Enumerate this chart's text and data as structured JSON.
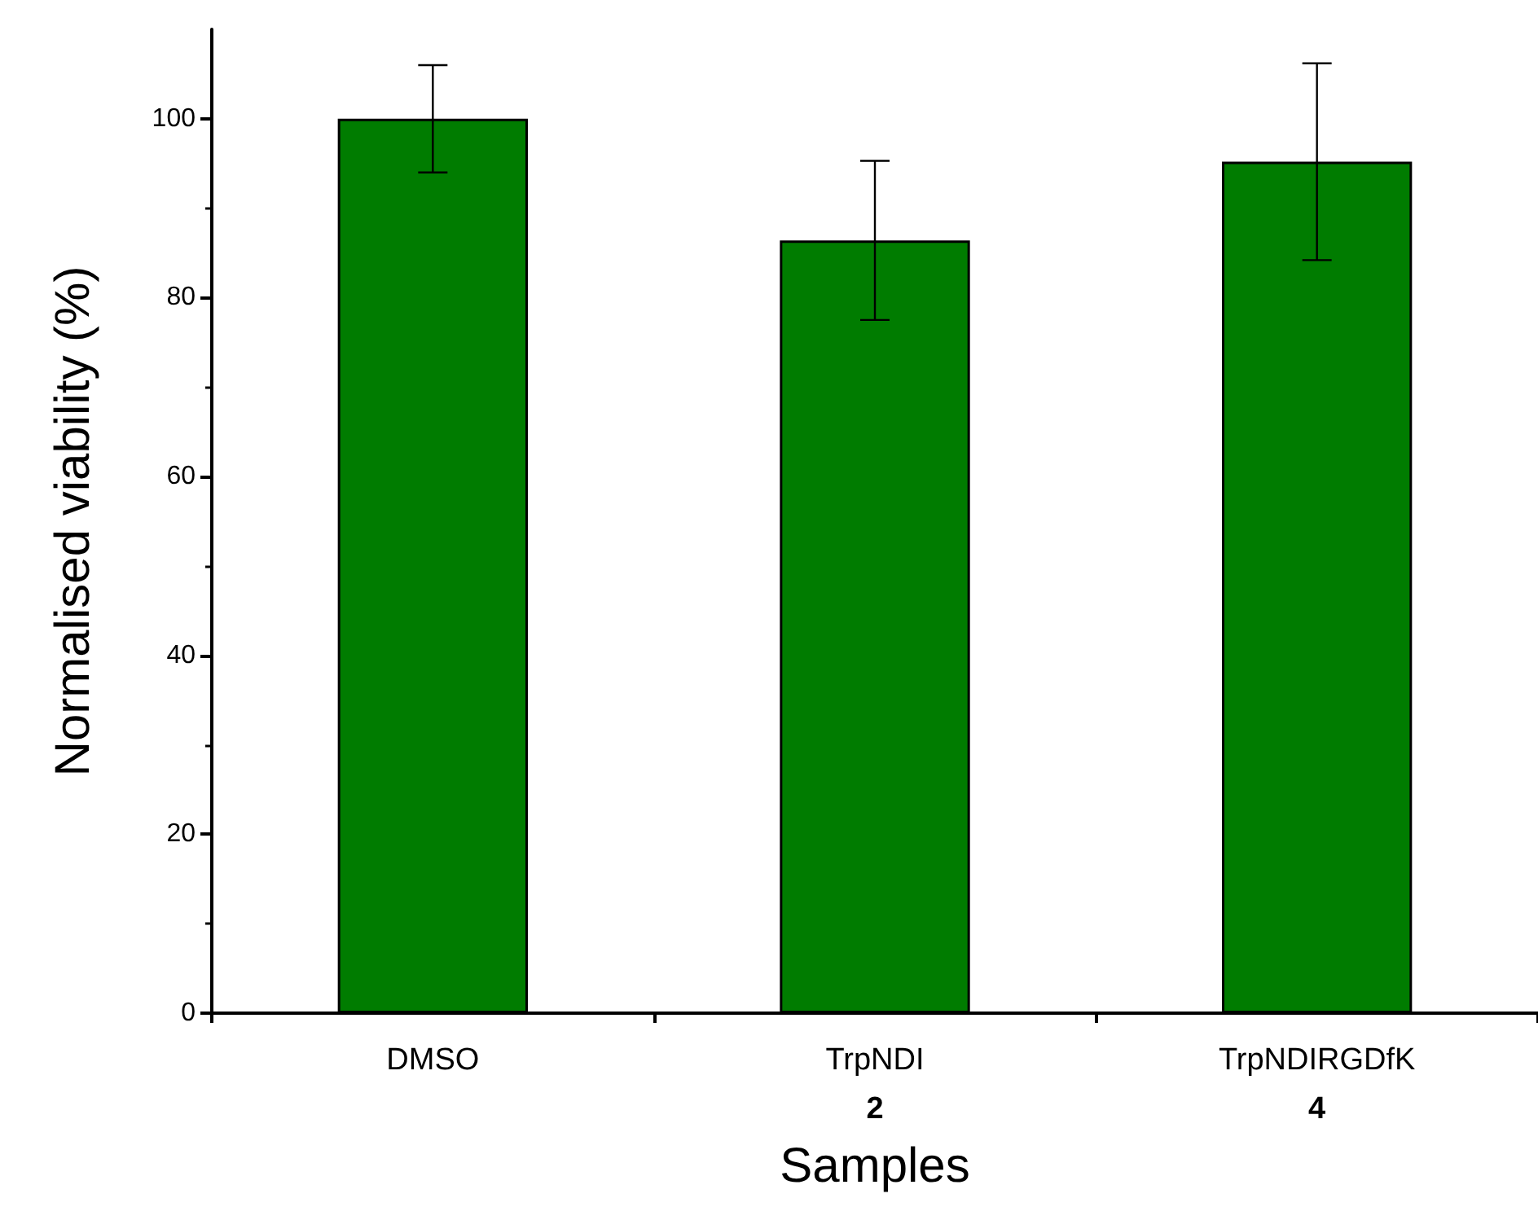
{
  "chart_data": {
    "type": "bar",
    "xlabel": "Samples",
    "ylabel": "Normalised viability (%)",
    "categories": [
      "DMSO",
      "TrpNDI\n2",
      "TrpNDIRGDfK\n4"
    ],
    "values": [
      100,
      86.4,
      95.2
    ],
    "errors": [
      6,
      8.9,
      11
    ],
    "color": "#007c00",
    "ylim": [
      0,
      110
    ],
    "yticks": [
      0,
      20,
      40,
      60,
      80,
      100
    ]
  }
}
